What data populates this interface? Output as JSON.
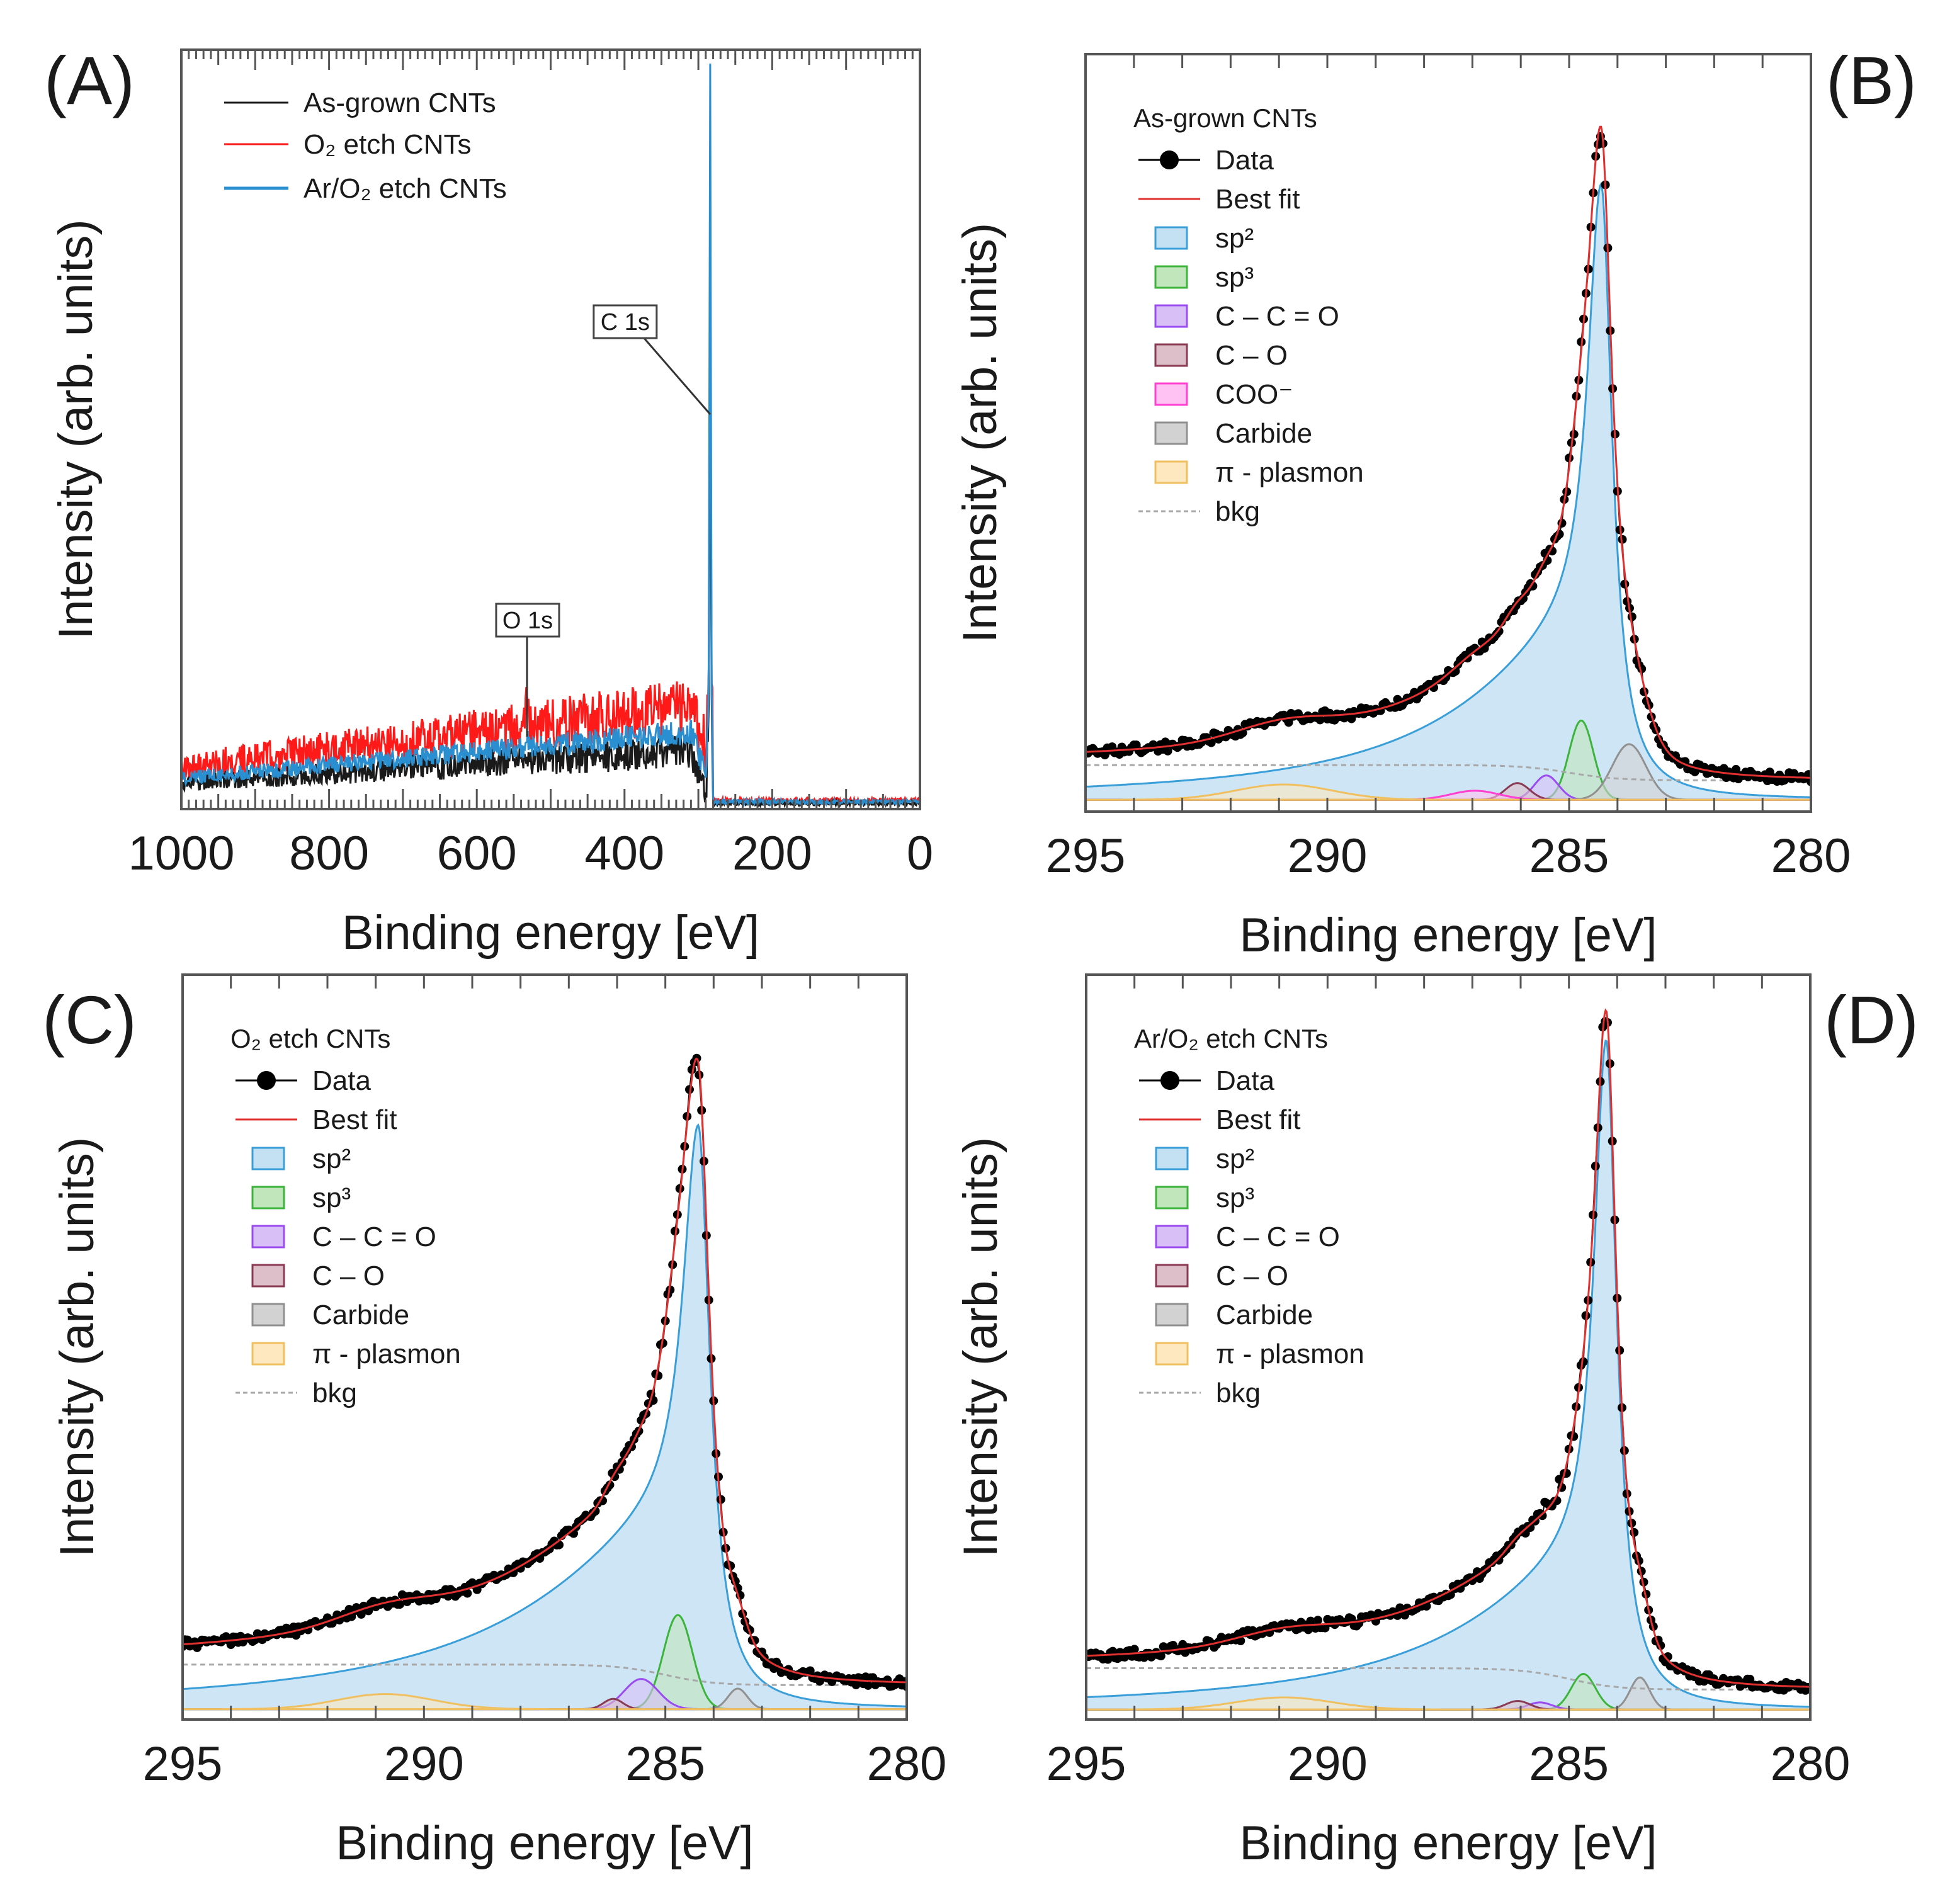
{
  "chart_data": [
    {
      "panel_label": "(A)",
      "type": "line",
      "xlabel": "Binding energy [eV]",
      "ylabel": "Intensity (arb. units)",
      "xlim": [
        1000,
        0
      ],
      "ylim": [
        0,
        1.034
      ],
      "xticks": [
        1000,
        800,
        600,
        400,
        200,
        0
      ],
      "grid": false,
      "legend": {
        "position": "top-left"
      },
      "series": [
        {
          "name": "As-grown CNTs",
          "color": "#1a1a1a",
          "background_at_1000eV": 0.036,
          "background_at_300eV": 0.08,
          "level_below_280eV": 0.008,
          "c1s_peak": 0.73,
          "o1s_peak": 0.006
        },
        {
          "name": "O₂ etch CNTs",
          "color": "#ff1a1a",
          "background_at_1000eV": 0.057,
          "background_at_300eV": 0.14,
          "level_below_280eV": 0.012,
          "c1s_peak": 0.72,
          "o1s_peak": 0.035
        },
        {
          "name": "Ar/O₂ etch CNTs",
          "color": "#2a8fd0",
          "background_at_1000eV": 0.042,
          "background_at_300eV": 0.105,
          "level_below_280eV": 0.01,
          "c1s_peak": 1.0,
          "o1s_peak": 0.012
        }
      ],
      "annotations": [
        {
          "text": "C 1s",
          "x": 284
        },
        {
          "text": "O 1s",
          "x": 532
        }
      ]
    },
    {
      "panel_label": "(B)",
      "type": "line",
      "title": "As-grown CNTs",
      "xlabel": "Binding energy [eV]",
      "ylabel": "Intensity (arb. units)",
      "xlim": [
        295,
        280
      ],
      "ylim": [
        -0.017,
        1.073
      ],
      "xticks": [
        295,
        290,
        285,
        280
      ],
      "grid": false,
      "legend": {
        "position": "top-left"
      },
      "legend_entries": {
        "data": "Data",
        "fit": "Best  fit",
        "bkg": "bkg"
      },
      "colors": {
        "data": "#000000",
        "fit": "#e03030",
        "bkg": "#a8a8a8"
      },
      "background": {
        "low_BE_level": 0.028,
        "high_BE_level": 0.05,
        "step_center": 285.0
      },
      "components": [
        {
          "name": "sp²",
          "shape": "asymmetric",
          "center": 284.34,
          "height": 0.886,
          "hwhm_low": 0.28,
          "hwhm_high": 0.33,
          "tail_weight": 0.28,
          "tail_hwhm": 3.0,
          "fill": "#c4e1f3",
          "stroke": "#3a9fd8"
        },
        {
          "name": "sp³",
          "shape": "gaussian",
          "center": 284.75,
          "height": 0.114,
          "sigma": 0.25,
          "fill": "#c2e6bc",
          "stroke": "#3cb43c"
        },
        {
          "name": "C – C = O",
          "shape": "gaussian",
          "center": 285.47,
          "height": 0.035,
          "sigma": 0.25,
          "fill": "#d8c0f6",
          "stroke": "#9a4cf0"
        },
        {
          "name": "C – O",
          "shape": "gaussian",
          "center": 286.07,
          "height": 0.024,
          "sigma": 0.25,
          "fill": "#dcbfc9",
          "stroke": "#8a3a52"
        },
        {
          "name": "COO⁻",
          "shape": "gaussian",
          "center": 286.95,
          "height": 0.013,
          "sigma": 0.5,
          "fill": "#ffc2f2",
          "stroke": "#ff40d0"
        },
        {
          "name": "Carbide",
          "shape": "gaussian",
          "center": 283.76,
          "height": 0.08,
          "sigma": 0.35,
          "fill": "#d2d2d2",
          "stroke": "#909090"
        },
        {
          "name": "π  - plasmon",
          "shape": "gaussian",
          "center": 290.9,
          "height": 0.022,
          "sigma": 1.0,
          "fill": "#fde8c0",
          "stroke": "#f0c060"
        }
      ]
    },
    {
      "panel_label": "(C)",
      "type": "line",
      "title": "O₂ etch CNTs",
      "xlabel": "Binding energy [eV]",
      "ylabel": "Intensity (arb. units)",
      "xlim": [
        295,
        280
      ],
      "ylim": [
        -0.015,
        1.069
      ],
      "xticks": [
        295,
        290,
        285,
        280
      ],
      "grid": false,
      "legend": {
        "position": "top-left"
      },
      "legend_entries": {
        "data": "Data",
        "fit": "Best  fit",
        "bkg": "bkg"
      },
      "colors": {
        "data": "#000000",
        "fit": "#e03030",
        "bkg": "#a8a8a8"
      },
      "background": {
        "low_BE_level": 0.035,
        "high_BE_level": 0.065,
        "step_center": 285.0
      },
      "components": [
        {
          "name": "sp²",
          "shape": "asymmetric",
          "center": 284.32,
          "height": 0.85,
          "hwhm_low": 0.3,
          "hwhm_high": 0.38,
          "tail_weight": 0.33,
          "tail_hwhm": 3.6,
          "fill": "#c4e1f3",
          "stroke": "#3a9fd8"
        },
        {
          "name": "sp³",
          "shape": "gaussian",
          "center": 284.74,
          "height": 0.137,
          "sigma": 0.3,
          "fill": "#c2e6bc",
          "stroke": "#3cb43c"
        },
        {
          "name": "C – C = O",
          "shape": "gaussian",
          "center": 285.5,
          "height": 0.044,
          "sigma": 0.35,
          "fill": "#d8c0f6",
          "stroke": "#9a4cf0"
        },
        {
          "name": "C – O",
          "shape": "gaussian",
          "center": 286.08,
          "height": 0.015,
          "sigma": 0.2,
          "fill": "#dcbfc9",
          "stroke": "#8a3a52"
        },
        {
          "name": "Carbide",
          "shape": "gaussian",
          "center": 283.5,
          "height": 0.03,
          "sigma": 0.2,
          "fill": "#d2d2d2",
          "stroke": "#909090"
        },
        {
          "name": "π  - plasmon",
          "shape": "gaussian",
          "center": 290.8,
          "height": 0.022,
          "sigma": 1.0,
          "fill": "#fde8c0",
          "stroke": "#f0c060"
        }
      ]
    },
    {
      "panel_label": "(D)",
      "type": "line",
      "title": "Ar/O₂ etch CNTs",
      "xlabel": "Binding energy [eV]",
      "ylabel": "Intensity (arb. units)",
      "xlim": [
        295,
        280
      ],
      "ylim": [
        -0.014,
        1.031
      ],
      "xticks": [
        295,
        290,
        285,
        280
      ],
      "grid": false,
      "legend": {
        "position": "top-left"
      },
      "legend_entries": {
        "data": "Data",
        "fit": "Best  fit",
        "bkg": "bkg"
      },
      "colors": {
        "data": "#000000",
        "fit": "#e03030",
        "bkg": "#a8a8a8"
      },
      "background": {
        "low_BE_level": 0.028,
        "high_BE_level": 0.058,
        "step_center": 285.0
      },
      "components": [
        {
          "name": "sp²",
          "shape": "asymmetric",
          "center": 284.23,
          "height": 0.939,
          "hwhm_low": 0.27,
          "hwhm_high": 0.3,
          "tail_weight": 0.22,
          "tail_hwhm": 3.2,
          "fill": "#c4e1f3",
          "stroke": "#3a9fd8"
        },
        {
          "name": "sp³",
          "shape": "gaussian",
          "center": 284.7,
          "height": 0.05,
          "sigma": 0.25,
          "fill": "#c2e6bc",
          "stroke": "#3cb43c"
        },
        {
          "name": "C – C = O",
          "shape": "gaussian",
          "center": 285.6,
          "height": 0.01,
          "sigma": 0.25,
          "fill": "#d8c0f6",
          "stroke": "#9a4cf0"
        },
        {
          "name": "C – O",
          "shape": "gaussian",
          "center": 286.06,
          "height": 0.012,
          "sigma": 0.25,
          "fill": "#dcbfc9",
          "stroke": "#8a3a52"
        },
        {
          "name": "Carbide",
          "shape": "gaussian",
          "center": 283.53,
          "height": 0.045,
          "sigma": 0.2,
          "fill": "#d2d2d2",
          "stroke": "#909090"
        },
        {
          "name": "π  - plasmon",
          "shape": "gaussian",
          "center": 290.9,
          "height": 0.017,
          "sigma": 1.0,
          "fill": "#fde8c0",
          "stroke": "#f0c060"
        }
      ]
    }
  ]
}
